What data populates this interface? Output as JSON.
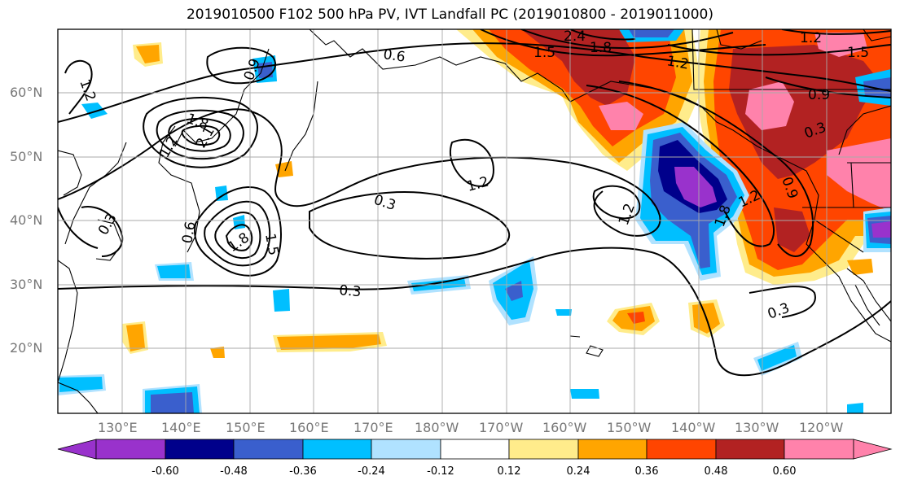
{
  "title": "2019010500 F102 500 hPa PV, IVT Landfall PC (2019010800 - 2019011000)",
  "lat_labels": [
    "60°N",
    "50°N",
    "40°N",
    "30°N",
    "20°N"
  ],
  "lon_labels": [
    "130°E",
    "140°E",
    "150°E",
    "160°E",
    "170°E",
    "180°W",
    "170°W",
    "160°W",
    "150°W",
    "140°W",
    "130°W",
    "120°W"
  ],
  "contour_labels": [
    "1.2",
    "0.6",
    "2.4",
    "1.8",
    "1.2",
    "1.5",
    "1.2",
    "0.9",
    "0.3",
    "1.5",
    "1.8",
    "2.1",
    "1.2",
    "0.3",
    "0.9",
    "0.3",
    "1.2",
    "1.5",
    "0.9",
    "1.8",
    "1.2",
    "0.3",
    "0.3",
    "0.6",
    "1.2",
    "1.8"
  ],
  "colorbar": {
    "tick_labels": [
      "-0.60",
      "-0.48",
      "-0.36",
      "-0.24",
      "-0.12",
      "0.12",
      "0.24",
      "0.36",
      "0.48",
      "0.60"
    ],
    "colors": [
      "#9932cc",
      "#00008b",
      "#3a5fcd",
      "#00bfff",
      "#b0e2ff",
      "#ffffff",
      "#ffec8b",
      "#ffa500",
      "#ff4500",
      "#b22222",
      "#ff82ab",
      "#ff82ab"
    ]
  },
  "map_colors": {
    "purple": "#9932cc",
    "navy": "#00008b",
    "royal": "#3a5fcd",
    "sky": "#00bfff",
    "pale_blue": "#b0e2ff",
    "pale_yellow": "#ffec8b",
    "orange": "#ffa500",
    "orange_red": "#ff4500",
    "dark_red": "#b22222",
    "pink": "#ff82ab"
  }
}
